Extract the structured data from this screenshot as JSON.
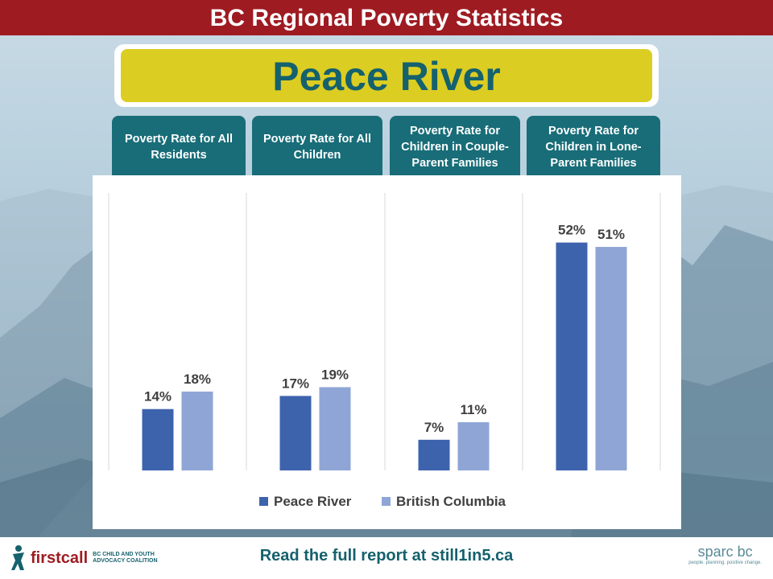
{
  "header": {
    "title": "BC Regional Poverty Statistics"
  },
  "region": {
    "name": "Peace River"
  },
  "chart_data": {
    "type": "bar",
    "categories": [
      "Poverty Rate for All Residents",
      "Poverty Rate for All Children",
      "Poverty Rate for Children in Couple-Parent Families",
      "Poverty Rate for Children in Lone-Parent Families"
    ],
    "series": [
      {
        "name": "Peace River",
        "values": [
          14,
          17,
          7,
          52
        ],
        "labels": [
          "14%",
          "17%",
          "7%",
          "52%"
        ],
        "color": "#3e63ad"
      },
      {
        "name": "British Columbia",
        "values": [
          18,
          19,
          11,
          51
        ],
        "labels": [
          "18%",
          "19%",
          "11%",
          "51%"
        ],
        "color": "#8fa5d6"
      }
    ],
    "ylim": [
      0,
      60
    ],
    "legend": "bottom"
  },
  "colors": {
    "banner": "#9e1b22",
    "teal": "#186d78",
    "yellow": "#dccd23"
  },
  "footer": {
    "text": "Read the full report at still1in5.ca",
    "left_logo_word": "firstcall",
    "left_logo_sub": "BC CHILD AND YOUTH ADVOCACY COALITION",
    "right_logo_word": "sparc bc",
    "right_logo_sub": "people. planning. positive change."
  }
}
